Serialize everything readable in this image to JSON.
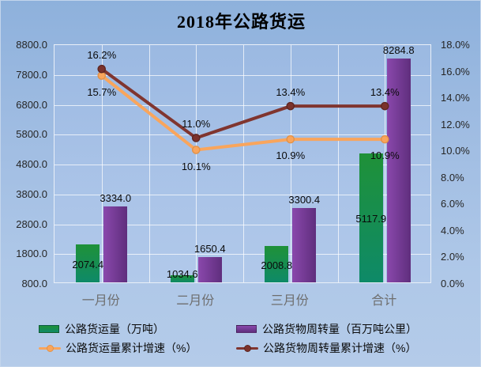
{
  "title": "2018年公路货运",
  "chart_data": {
    "type": "combo-bar-line",
    "title": "2018年公路货运",
    "categories": [
      "一月份",
      "二月份",
      "三月份",
      "合计"
    ],
    "bar_series": [
      {
        "name": "公路货运量（万吨）",
        "axis": "left",
        "values": [
          2074.4,
          1034.6,
          2008.8,
          5117.9
        ],
        "labels": [
          "2074.4",
          "1034.6",
          "2008.8",
          "5117.9"
        ],
        "label_position": "inside-center",
        "color_top": "#1F9138",
        "color_bottom": "#0E8A68"
      },
      {
        "name": "公路货物周转量（百万吨公里）",
        "axis": "left",
        "values": [
          3334.0,
          1650.4,
          3300.4,
          8284.8
        ],
        "labels": [
          "3334.0",
          "1650.4",
          "3300.4",
          "8284.8"
        ],
        "label_position": "outside-top",
        "color_top": "#8A48AC",
        "color_bottom": "#5F2E7D"
      }
    ],
    "line_series": [
      {
        "name": "公路货运量累计增速（%）",
        "axis": "right",
        "values": [
          15.7,
          10.1,
          10.9,
          10.9
        ],
        "labels": [
          "15.7%",
          "10.1%",
          "10.9%",
          "10.9%"
        ],
        "label_position": "below",
        "color": "#F9A55C",
        "marker_fill": "#F9A55C",
        "marker_edge": "#E29248"
      },
      {
        "name": "公路货物周转量累计增速（%）",
        "axis": "right",
        "values": [
          16.2,
          11.0,
          13.4,
          13.4
        ],
        "labels": [
          "16.2%",
          "11.0%",
          "13.4%",
          "13.4%"
        ],
        "label_position": "above",
        "color": "#80352F",
        "marker_fill": "#7B322C",
        "marker_edge": "#5E2621"
      }
    ],
    "left_axis": {
      "min": 800,
      "max": 8800,
      "step": 1000,
      "ticks": [
        "800.0",
        "1800.0",
        "2800.0",
        "3800.0",
        "4800.0",
        "5800.0",
        "6800.0",
        "7800.0",
        "8800.0"
      ]
    },
    "right_axis": {
      "min": 0,
      "max": 18,
      "step": 2,
      "ticks": [
        "0.0%",
        "2.0%",
        "4.0%",
        "6.0%",
        "8.0%",
        "10.0%",
        "12.0%",
        "14.0%",
        "16.0%",
        "18.0%"
      ]
    },
    "grid": true,
    "legend_position": "bottom"
  },
  "colors": {
    "background_top": "#8EB1DC",
    "background_bottom": "#B4CBE9",
    "plot_background": "#A8C2E7",
    "gridline": "#E6EEF8",
    "title_text": "#111111",
    "axis_text": "#262626",
    "category_text": "#6E6E6E",
    "data_label_text": "#0A0A0A",
    "bar_green": "#178A4F",
    "bar_purple": "#7E3F9E",
    "line_orange": "#F9A55C",
    "line_dark_red": "#80352F"
  }
}
